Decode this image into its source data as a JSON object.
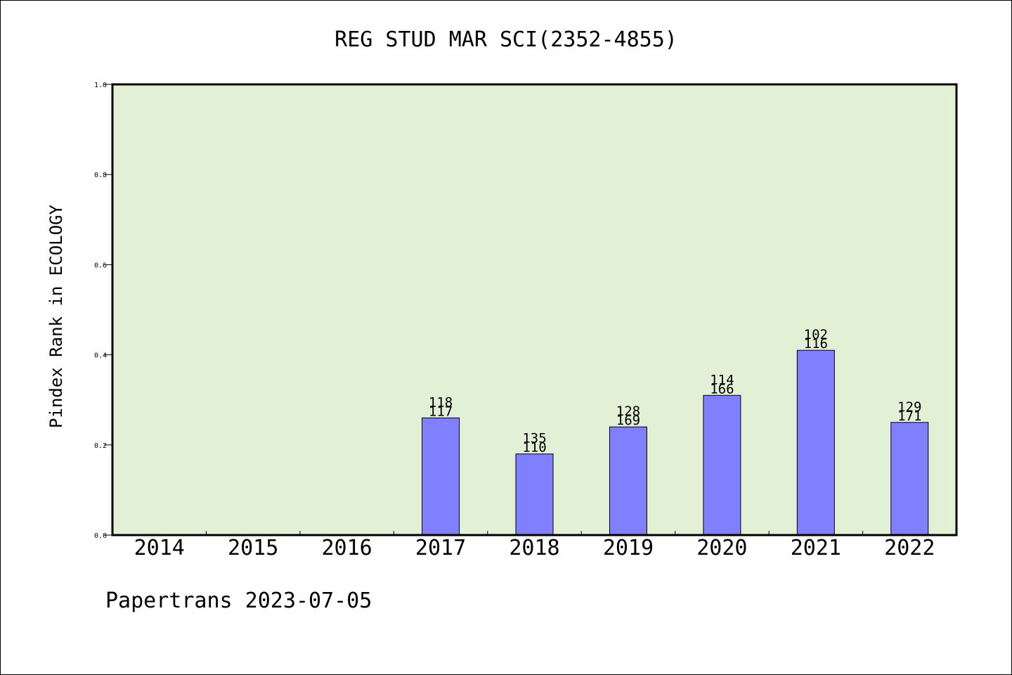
{
  "chart_data": {
    "type": "bar",
    "title": "REG STUD MAR SCI(2352-4855)",
    "ylabel": "Pindex Rank in ECOLOGY",
    "xlabel": "",
    "footer": "Papertrans 2023-07-05",
    "ylim": [
      0.0,
      1.0
    ],
    "yticks": [
      "0.0",
      "0.2",
      "0.4",
      "0.6",
      "0.8",
      "1.0"
    ],
    "categories": [
      "2014",
      "2015",
      "2016",
      "2017",
      "2018",
      "2019",
      "2020",
      "2021",
      "2022"
    ],
    "values": [
      null,
      null,
      null,
      0.26,
      0.18,
      0.24,
      0.31,
      0.41,
      0.25
    ],
    "labels_top": [
      "",
      "",
      "",
      "118",
      "135",
      "128",
      "114",
      "102",
      "129"
    ],
    "labels_bottom": [
      "",
      "",
      "",
      "117",
      "110",
      "169",
      "166",
      "116",
      "171"
    ],
    "grid": false,
    "legend": "none",
    "colors": {
      "plot_background": "#e2f0d5",
      "bar_fill": "#8080ff",
      "bar_stroke": "#000000",
      "axis": "#000000",
      "text": "#000000"
    }
  }
}
